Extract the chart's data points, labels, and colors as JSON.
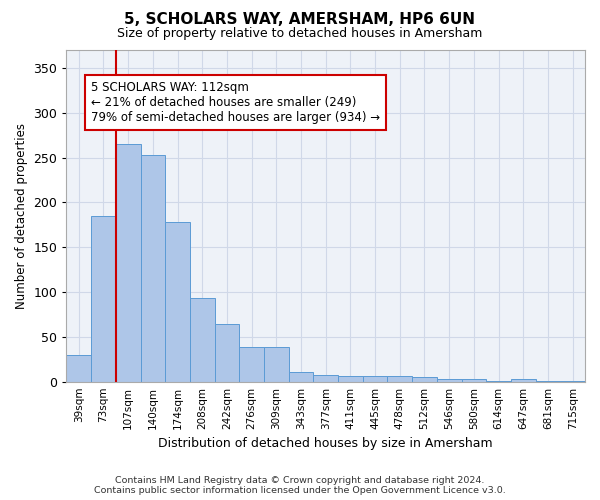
{
  "title": "5, SCHOLARS WAY, AMERSHAM, HP6 6UN",
  "subtitle": "Size of property relative to detached houses in Amersham",
  "xlabel": "Distribution of detached houses by size in Amersham",
  "ylabel": "Number of detached properties",
  "categories": [
    "39sqm",
    "73sqm",
    "107sqm",
    "140sqm",
    "174sqm",
    "208sqm",
    "242sqm",
    "276sqm",
    "309sqm",
    "343sqm",
    "377sqm",
    "411sqm",
    "445sqm",
    "478sqm",
    "512sqm",
    "546sqm",
    "580sqm",
    "614sqm",
    "647sqm",
    "681sqm",
    "715sqm"
  ],
  "values": [
    30,
    185,
    265,
    253,
    178,
    93,
    64,
    39,
    39,
    11,
    8,
    6,
    6,
    6,
    5,
    3,
    3,
    1,
    3,
    1,
    1
  ],
  "bar_color": "#aec6e8",
  "bar_edge_color": "#5b9bd5",
  "grid_color": "#d0d8e8",
  "background_color": "#eef2f8",
  "vline_x": 1.5,
  "vline_color": "#cc0000",
  "annotation_text": "5 SCHOLARS WAY: 112sqm\n← 21% of detached houses are smaller (249)\n79% of semi-detached houses are larger (934) →",
  "annotation_box_color": "white",
  "annotation_box_edge": "#cc0000",
  "footer_text": "Contains HM Land Registry data © Crown copyright and database right 2024.\nContains public sector information licensed under the Open Government Licence v3.0.",
  "ylim": [
    0,
    370
  ],
  "yticks": [
    0,
    50,
    100,
    150,
    200,
    250,
    300,
    350
  ],
  "title_fontsize": 11,
  "subtitle_fontsize": 9
}
